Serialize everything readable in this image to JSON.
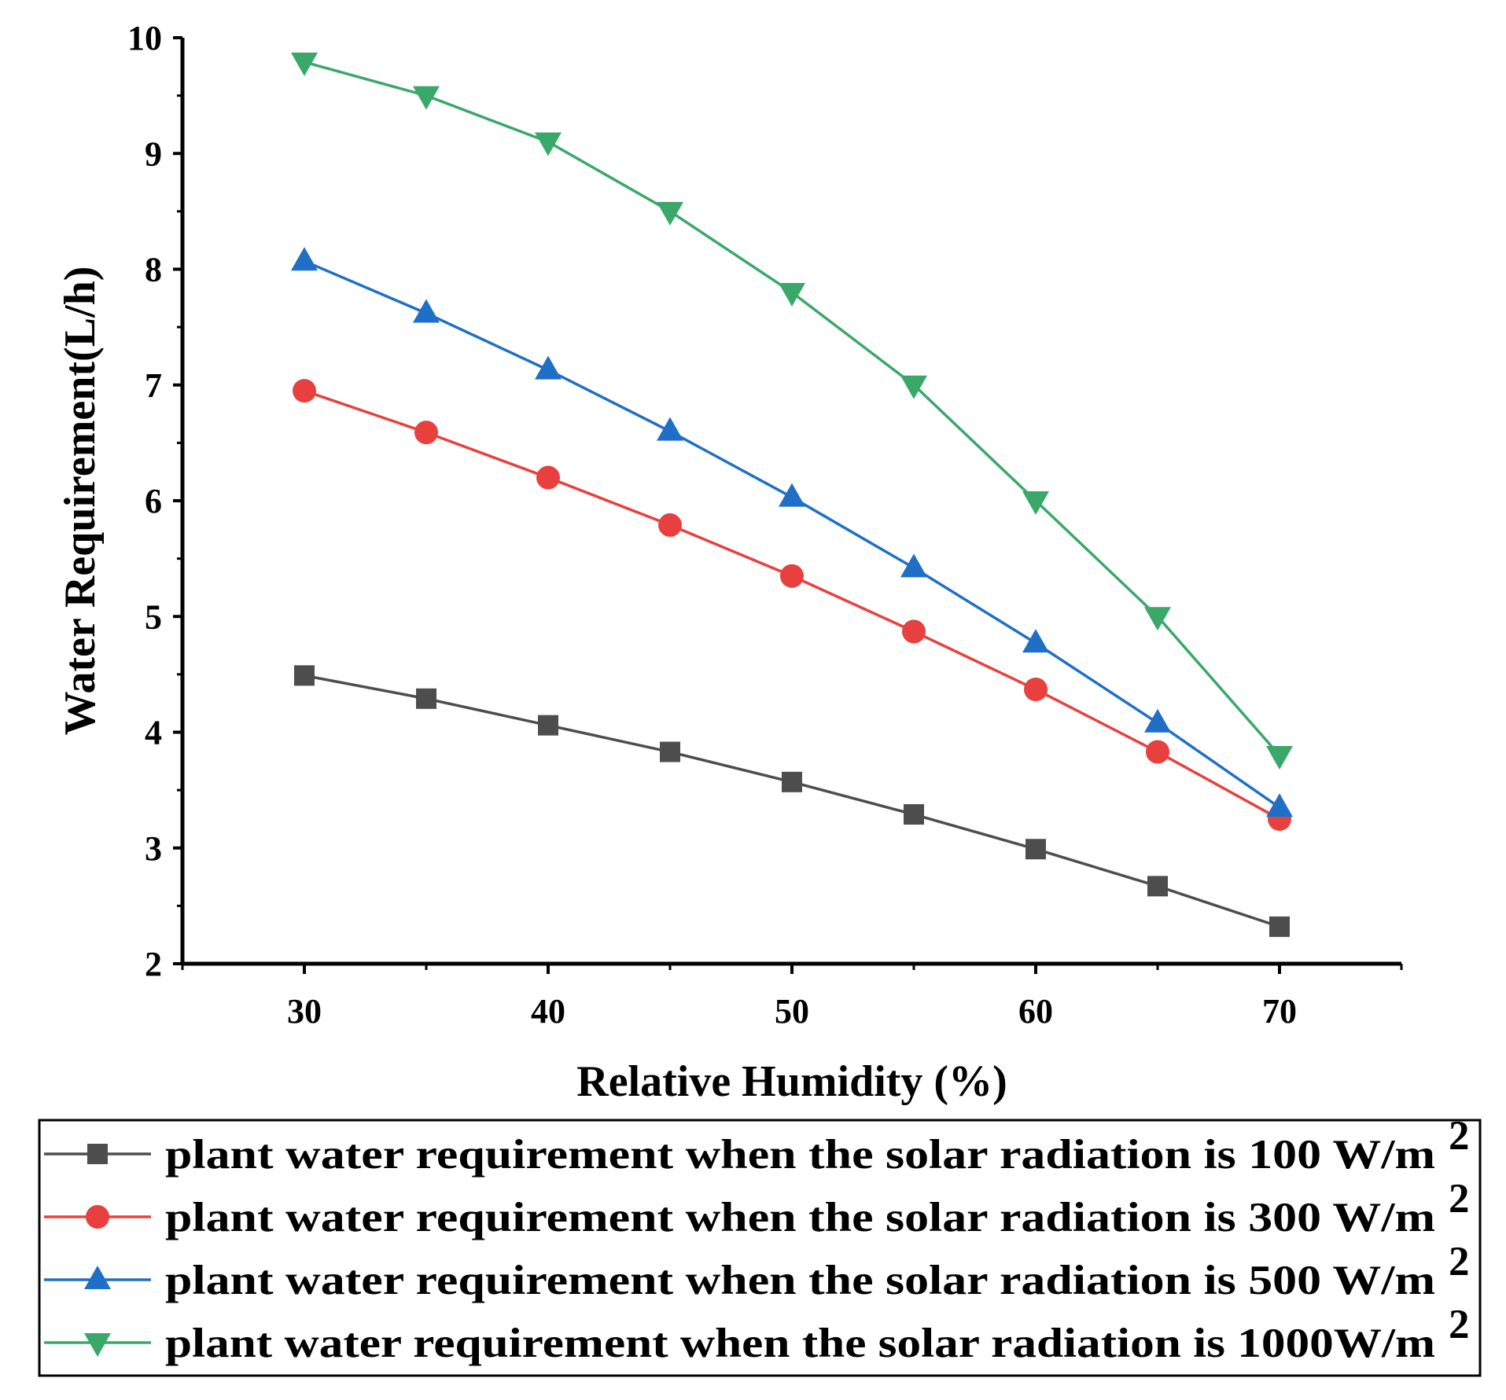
{
  "chart_data": {
    "type": "line",
    "xlabel": "Relative Humidity (%)",
    "ylabel": "Water Requirement(L/h)",
    "xlim": [
      25,
      75
    ],
    "ylim": [
      2,
      10
    ],
    "xticks": [
      30,
      40,
      50,
      60,
      70
    ],
    "yticks": [
      2,
      3,
      4,
      5,
      6,
      7,
      8,
      9,
      10
    ],
    "x": [
      30,
      35,
      40,
      45,
      50,
      55,
      60,
      65,
      70
    ],
    "legend_position": "bottom",
    "series": [
      {
        "name": "plant water requirement when the solar radiation is 100 W/m2",
        "legend_text": "plant water requirement when the solar radiation is 100 W/m",
        "legend_sup": "2",
        "color": "#4d4d4d",
        "marker": "square",
        "values": [
          4.49,
          4.29,
          4.06,
          3.83,
          3.57,
          3.29,
          2.99,
          2.67,
          2.32
        ]
      },
      {
        "name": "plant water requirement when the solar radiation is 300 W/m2",
        "legend_text": "plant water requirement when the solar radiation is 300 W/m",
        "legend_sup": "2",
        "color": "#e8403f",
        "marker": "circle",
        "values": [
          6.95,
          6.59,
          6.2,
          5.79,
          5.35,
          4.87,
          4.37,
          3.83,
          3.25
        ]
      },
      {
        "name": "plant water requirement when the solar radiation is 500 W/m2",
        "legend_text": "plant water requirement when the solar radiation is 500 W/m",
        "legend_sup": "2",
        "color": "#1f6fc6",
        "marker": "triangle-up",
        "values": [
          8.07,
          7.62,
          7.13,
          6.6,
          6.03,
          5.42,
          4.77,
          4.08,
          3.35
        ]
      },
      {
        "name": "plant water requirement when the solar radiation is 1000W/m2",
        "legend_text": "plant water requirement when the solar radiation is 1000W/m",
        "legend_sup": "2",
        "color": "#3aa868",
        "marker": "triangle-down",
        "values": [
          9.79,
          9.5,
          9.1,
          8.5,
          7.8,
          7.0,
          6.0,
          5.0,
          3.8
        ]
      }
    ]
  }
}
